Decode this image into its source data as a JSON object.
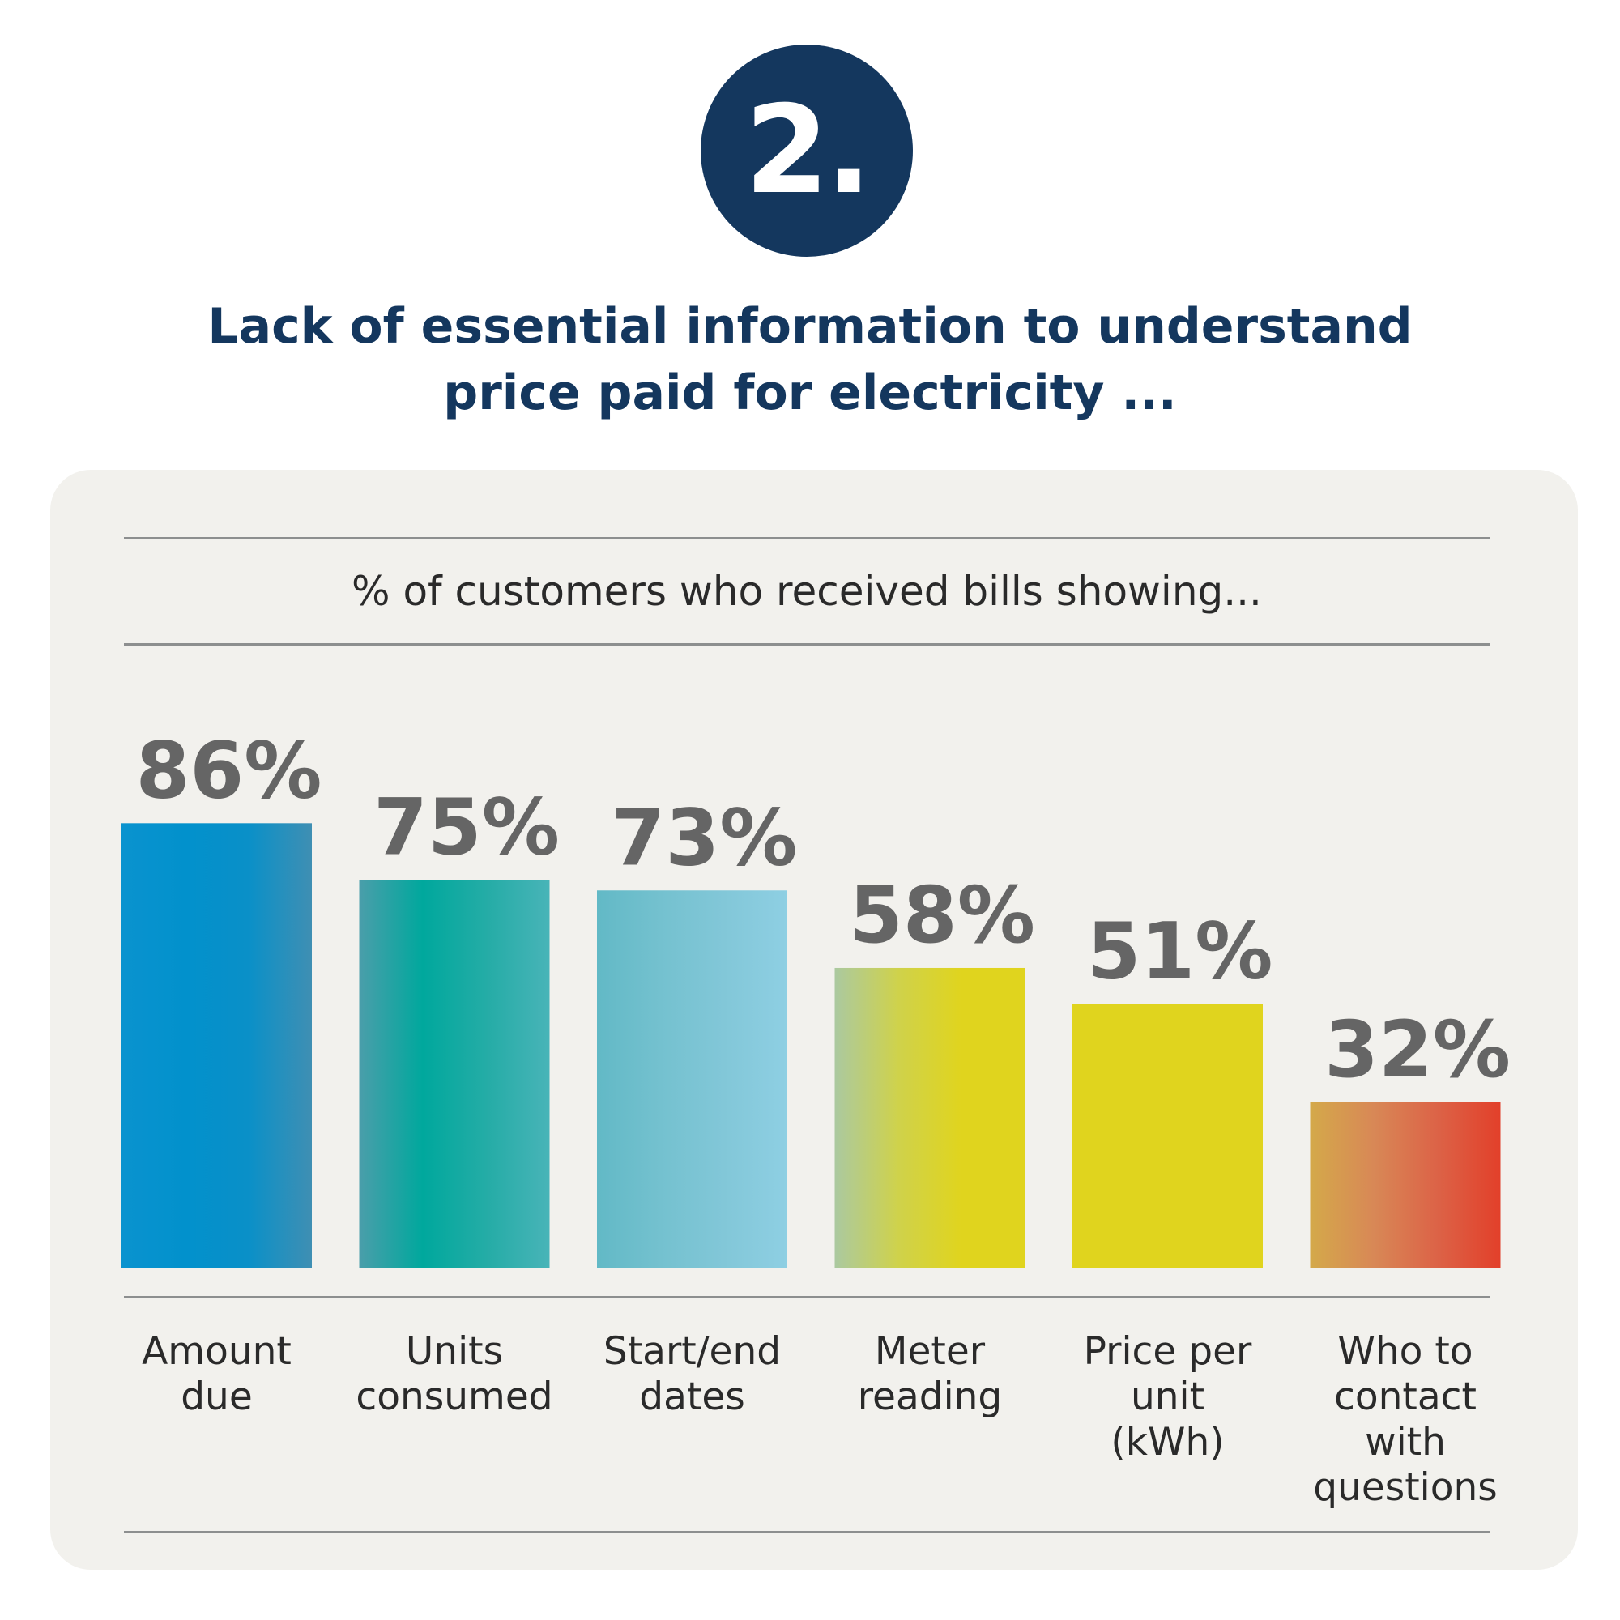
{
  "badge": {
    "number": "2."
  },
  "title": {
    "line1": "Lack of essential information to understand",
    "line2": "price paid for electricity ..."
  },
  "chart_data": {
    "type": "bar",
    "subtitle": "% of customers who received bills showing...",
    "categories": [
      "Amount due",
      "Units consumed",
      "Start/end dates",
      "Meter reading",
      "Price per unit (kWh)",
      "Who to contact with questions"
    ],
    "category_lines": [
      [
        "Amount",
        "due"
      ],
      [
        "Units",
        "consumed"
      ],
      [
        "Start/end",
        "dates"
      ],
      [
        "Meter",
        "reading"
      ],
      [
        "Price per",
        "unit",
        "(kWh)"
      ],
      [
        "Who to",
        "contact",
        "with",
        "questions"
      ]
    ],
    "values": [
      86,
      75,
      73,
      58,
      51,
      32
    ],
    "value_labels": [
      "86%",
      "75%",
      "73%",
      "58%",
      "51%",
      "32%"
    ],
    "ylim": [
      0,
      100
    ],
    "grid": false,
    "legend": false,
    "colors": [
      [
        "#0a93cf",
        "#0291cc",
        "#0a90c8",
        "#3f8fb3"
      ],
      [
        "#4a9eaa",
        "#00a89d",
        "#24aca6",
        "#48b4b8"
      ],
      [
        "#62b9c6",
        "#74c1cf",
        "#82c7d8",
        "#8ecfe3"
      ],
      [
        "#abc9a0",
        "#cfd24b",
        "#e0d41e",
        "#e0d41e"
      ],
      [
        "#e0d41e",
        "#e0d41e",
        "#e0d41e",
        "#e0d41e"
      ],
      [
        "#d4a94a",
        "#d88856",
        "#dc6347",
        "#e2402a"
      ]
    ]
  }
}
